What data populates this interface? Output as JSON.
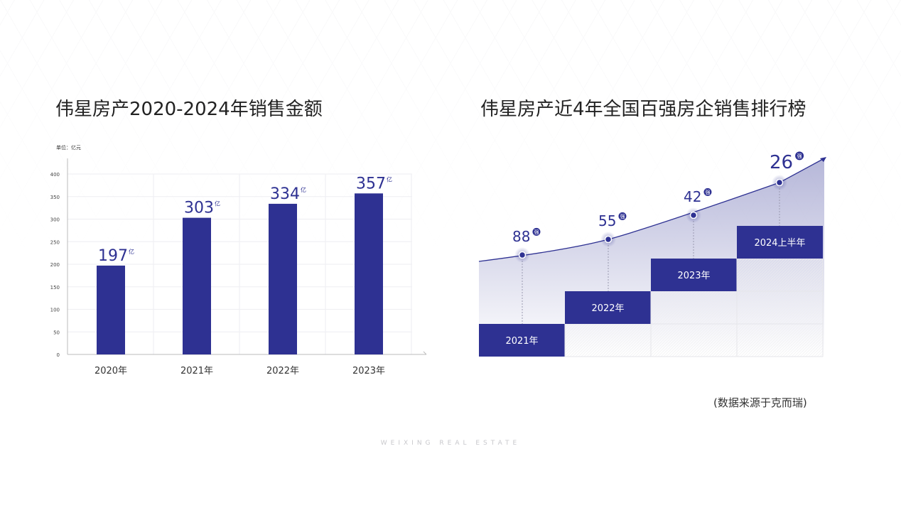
{
  "left": {
    "title": "伟星房产2020-2024年销售金额",
    "unit": "单位：亿元"
  },
  "right": {
    "title": "伟星房产近4年全国百强房企销售排行榜"
  },
  "source": "(数据来源于克而瑞)",
  "footer": "WEIXING REAL ESTATE",
  "colors": {
    "bar": "#2e3192",
    "text": "#2e3192"
  },
  "chart_data": [
    {
      "type": "bar",
      "title": "伟星房产2020-2024年销售金额",
      "ylabel": "单位：亿元",
      "categories": [
        "2020年",
        "2021年",
        "2022年",
        "2023年"
      ],
      "values": [
        197,
        303,
        334,
        357
      ],
      "value_suffix": "亿",
      "yticks": [
        "0",
        "50",
        "100",
        "150",
        "200",
        "250",
        "300",
        "350",
        "400"
      ],
      "ylim": [
        0,
        400
      ],
      "grid": true
    },
    {
      "type": "line",
      "title": "伟星房产近4年全国百强房企销售排行榜",
      "categories": [
        "2021年",
        "2022年",
        "2023年",
        "2024上半年"
      ],
      "values": [
        88,
        55,
        42,
        26
      ],
      "value_suffix": "强"
    }
  ]
}
